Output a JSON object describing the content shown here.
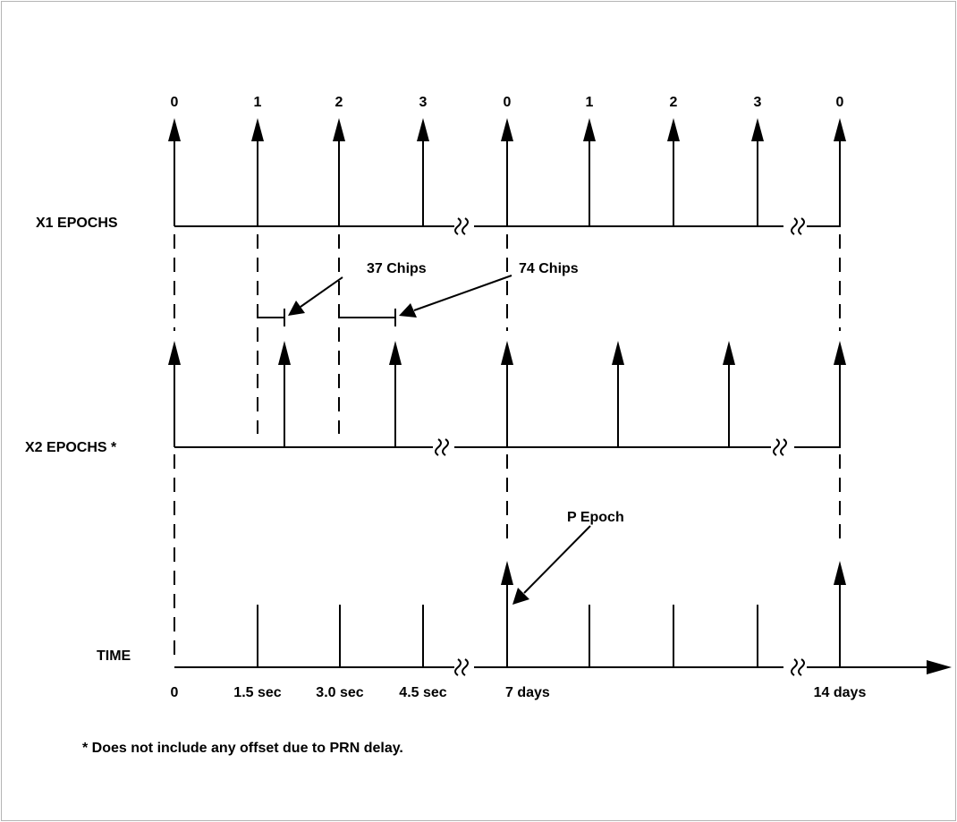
{
  "rows": {
    "x1_label": "X1 EPOCHS",
    "x2_label": "X2 EPOCHS *",
    "time_label": "TIME"
  },
  "x1_numbers": [
    "0",
    "1",
    "2",
    "3",
    "0",
    "1",
    "2",
    "3",
    "0"
  ],
  "annotations": {
    "chips_37": "37 Chips",
    "chips_74": "74 Chips",
    "p_epoch": "P Epoch"
  },
  "time_ticks": {
    "t0": "0",
    "t1": "1.5 sec",
    "t2": "3.0 sec",
    "t3": "4.5 sec",
    "t4": "7 days",
    "t5": "14 days"
  },
  "footnote": "*  Does not include any offset due to PRN delay."
}
